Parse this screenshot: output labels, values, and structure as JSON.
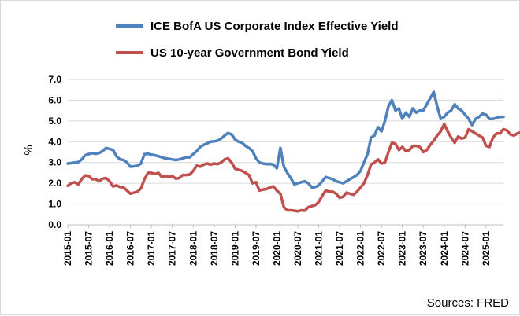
{
  "chart_data": {
    "type": "line",
    "title": "",
    "xlabel": "",
    "ylabel": "%",
    "ylim": [
      0,
      7
    ],
    "yticks": [
      "0.0",
      "1.0",
      "2.0",
      "3.0",
      "4.0",
      "5.0",
      "6.0",
      "7.0"
    ],
    "grid": "horizontal",
    "legend_position": "top",
    "source": "Sources: FRED",
    "x_tick_labels": [
      "2015-01",
      "2015-07",
      "2016-01",
      "2016-07",
      "2017-01",
      "2017-07",
      "2018-01",
      "2018-07",
      "2019-01",
      "2019-07",
      "2020-01",
      "2020-07",
      "2021-01",
      "2021-07",
      "2022-01",
      "2022-07",
      "2023-01",
      "2023-07",
      "2024-01",
      "2024-07",
      "2025-01"
    ],
    "x_start": "2015-01",
    "x_frequency": "monthly",
    "series": [
      {
        "name": "ICE BofA US Corporate Index Effective Yield",
        "color": "#4f81bd",
        "values": [
          2.95,
          2.97,
          3.0,
          3.02,
          3.15,
          3.35,
          3.4,
          3.45,
          3.42,
          3.45,
          3.55,
          3.7,
          3.65,
          3.6,
          3.3,
          3.15,
          3.12,
          3.0,
          2.8,
          2.82,
          2.85,
          2.95,
          3.4,
          3.42,
          3.38,
          3.35,
          3.3,
          3.25,
          3.2,
          3.18,
          3.15,
          3.12,
          3.15,
          3.2,
          3.25,
          3.25,
          3.4,
          3.55,
          3.75,
          3.85,
          3.92,
          4.0,
          4.02,
          4.05,
          4.15,
          4.3,
          4.42,
          4.35,
          4.1,
          4.0,
          3.95,
          3.8,
          3.7,
          3.55,
          3.2,
          3.0,
          2.95,
          2.92,
          2.93,
          2.9,
          2.72,
          3.7,
          2.8,
          2.5,
          2.25,
          1.95,
          2.0,
          2.05,
          2.1,
          2.0,
          1.8,
          1.82,
          1.9,
          2.1,
          2.3,
          2.25,
          2.2,
          2.1,
          2.05,
          2.0,
          2.1,
          2.2,
          2.3,
          2.4,
          2.6,
          3.0,
          3.4,
          4.2,
          4.3,
          4.7,
          4.5,
          5.0,
          5.7,
          6.0,
          5.5,
          5.6,
          5.1,
          5.4,
          5.2,
          5.6,
          5.4,
          5.5,
          5.5,
          5.8,
          6.1,
          6.4,
          5.7,
          5.1,
          5.2,
          5.4,
          5.5,
          5.8,
          5.6,
          5.5,
          5.3,
          5.1,
          4.8,
          5.1,
          5.2,
          5.35,
          5.3,
          5.1,
          5.1,
          5.15,
          5.2,
          5.2
        ]
      },
      {
        "name": "US 10-year Government Bond Yield",
        "color": "#c0504d",
        "values": [
          1.88,
          2.0,
          2.05,
          1.95,
          2.2,
          2.38,
          2.35,
          2.2,
          2.2,
          2.1,
          2.22,
          2.25,
          2.1,
          1.85,
          1.9,
          1.82,
          1.8,
          1.65,
          1.5,
          1.55,
          1.6,
          1.75,
          2.2,
          2.5,
          2.5,
          2.45,
          2.5,
          2.3,
          2.35,
          2.3,
          2.35,
          2.22,
          2.25,
          2.4,
          2.4,
          2.42,
          2.6,
          2.85,
          2.8,
          2.9,
          2.95,
          2.9,
          2.95,
          2.92,
          3.0,
          3.15,
          3.2,
          3.0,
          2.7,
          2.65,
          2.6,
          2.5,
          2.4,
          2.0,
          2.05,
          1.65,
          1.7,
          1.72,
          1.8,
          1.85,
          1.65,
          1.5,
          0.85,
          0.7,
          0.7,
          0.68,
          0.65,
          0.7,
          0.68,
          0.85,
          0.9,
          0.95,
          1.1,
          1.4,
          1.65,
          1.6,
          1.6,
          1.5,
          1.3,
          1.35,
          1.55,
          1.5,
          1.45,
          1.6,
          1.8,
          2.0,
          2.4,
          2.9,
          3.0,
          3.15,
          2.95,
          3.0,
          3.5,
          3.95,
          3.9,
          3.6,
          3.75,
          3.55,
          3.6,
          3.8,
          3.8,
          3.75,
          3.5,
          3.6,
          3.85,
          4.05,
          4.3,
          4.5,
          4.85,
          4.5,
          4.2,
          3.95,
          4.25,
          4.15,
          4.2,
          4.6,
          4.5,
          4.4,
          4.3,
          4.2,
          3.8,
          3.75,
          4.2,
          4.4,
          4.4,
          4.6,
          4.55,
          4.35,
          4.3,
          4.4,
          4.45
        ]
      }
    ]
  }
}
